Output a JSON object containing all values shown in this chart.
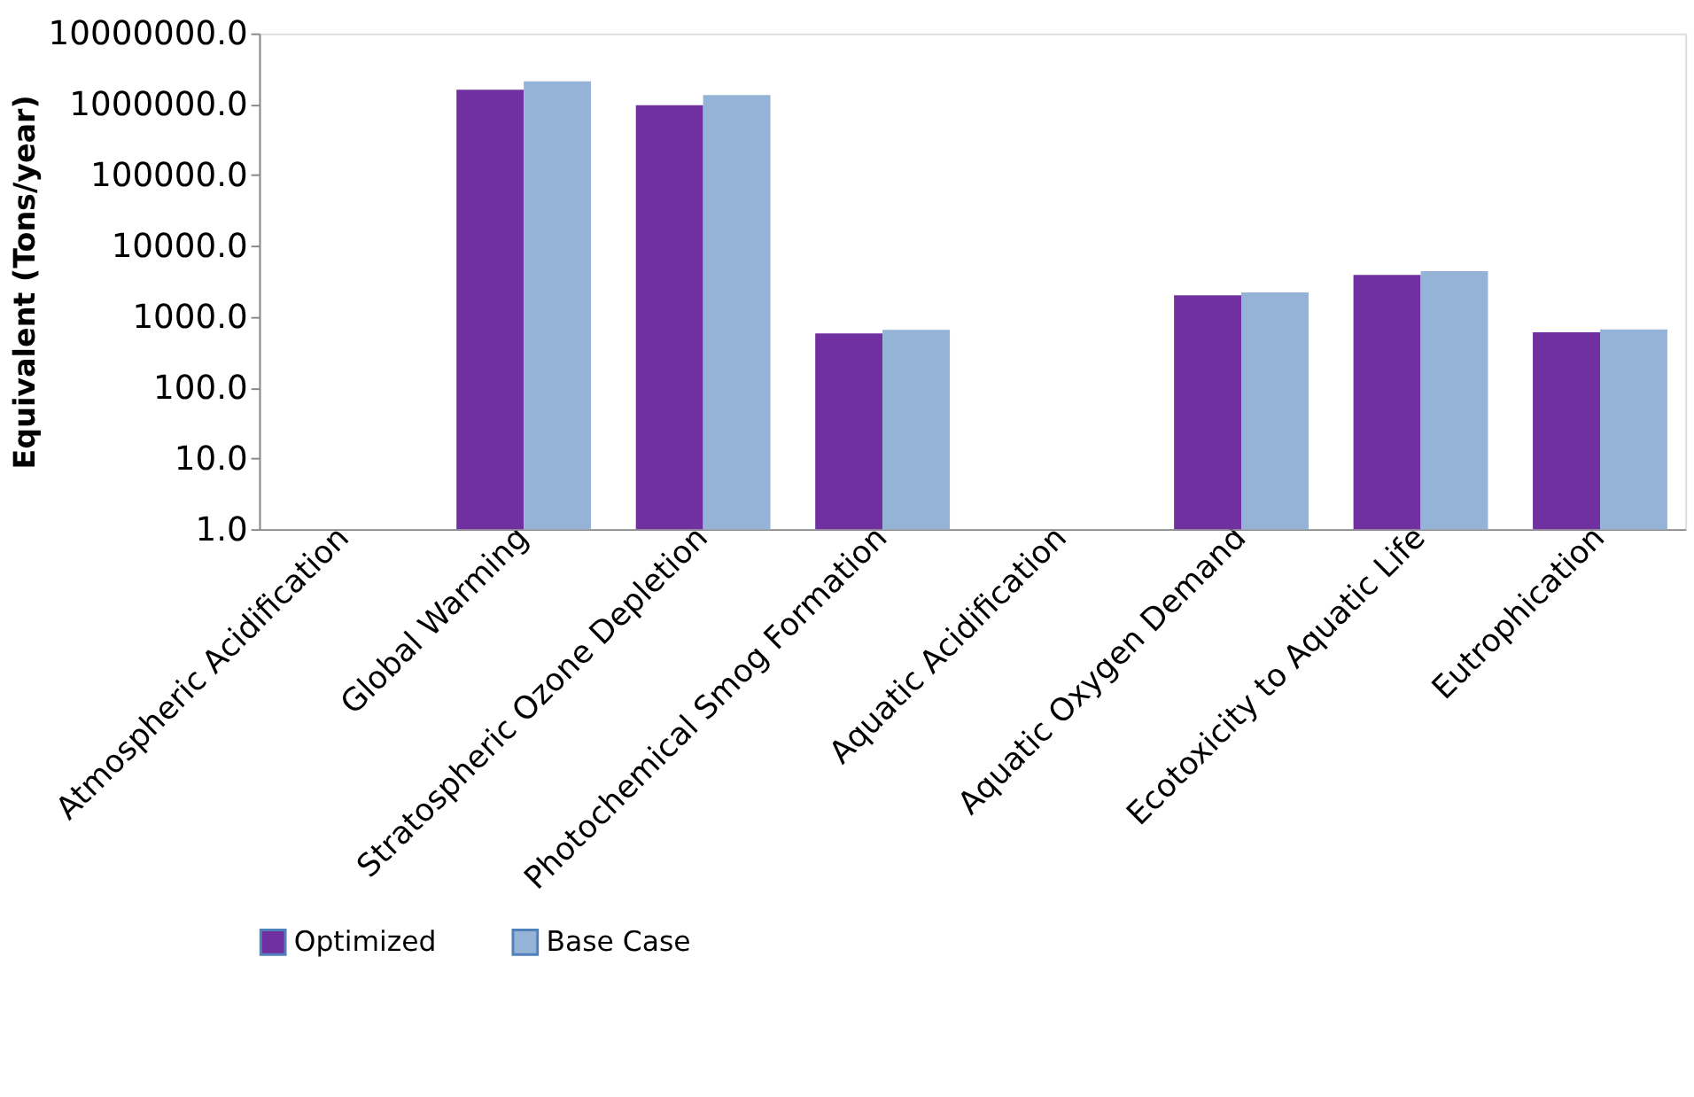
{
  "chart_data": {
    "type": "bar",
    "ylabel": "Equivalent (Tons/year)",
    "categories": [
      "Atmospheric Acidification",
      "Global Warming",
      "Stratospheric Ozone Depletion",
      "Photochemical Smog Formation",
      "Aquatic Acidification",
      "Aquatic Oxygen Demand",
      "Ecotoxicity to Aquatic Life",
      "Eutrophication"
    ],
    "series": [
      {
        "name": "Optimized",
        "color": "#7030a0",
        "values": [
          null,
          1600000,
          970000,
          580,
          null,
          2000,
          3900,
          600
        ]
      },
      {
        "name": "Base Case",
        "color": "#95b3d7",
        "values": [
          null,
          2100000,
          1350000,
          650,
          null,
          2200,
          4400,
          660
        ]
      }
    ],
    "log": true,
    "ylim": [
      1,
      10000000
    ],
    "yticks": [
      {
        "value": 1,
        "label": "1.0"
      },
      {
        "value": 10,
        "label": "10.0"
      },
      {
        "value": 100,
        "label": "100.0"
      },
      {
        "value": 1000,
        "label": "1000.0"
      },
      {
        "value": 10000,
        "label": "10000.0"
      },
      {
        "value": 100000,
        "label": "100000.0"
      },
      {
        "value": 1000000,
        "label": "1000000.0"
      },
      {
        "value": 10000000,
        "label": "10000000.0"
      }
    ],
    "grid": false,
    "legend": "bottom"
  }
}
